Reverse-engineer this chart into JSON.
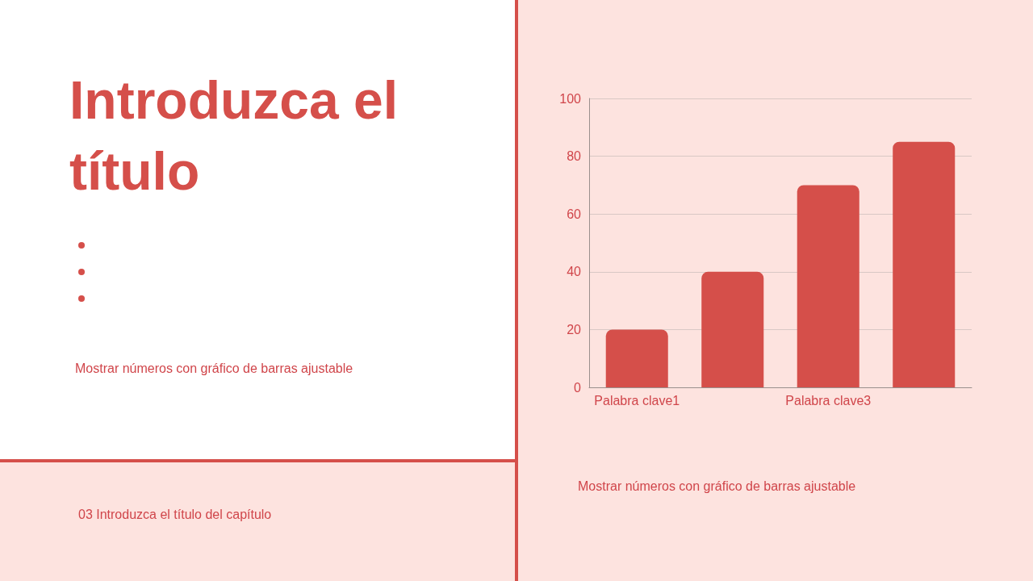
{
  "chart_data": {
    "type": "bar",
    "title": "Introduzca el título",
    "categories": [
      "Palabra clave1",
      null,
      "Palabra clave3",
      null
    ],
    "values": [
      20,
      40,
      70,
      85
    ],
    "color": "#d54f4a",
    "ylim": [
      0,
      100
    ],
    "yticks": [
      0,
      20,
      40,
      60,
      80,
      100
    ],
    "grid": "y",
    "annotations": [
      "Mostrar números con gráfico de barras ajustable",
      "Mostrar números con gráfico de barras ajustable",
      "03 Introduzca el título del capítulo"
    ]
  }
}
